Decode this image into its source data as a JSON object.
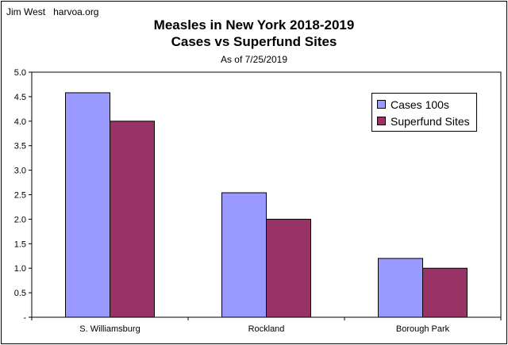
{
  "credit": "Jim West   harvoa.org",
  "chart_data": {
    "type": "bar",
    "title": [
      "Measles in New York 2018-2019",
      "Cases vs Superfund Sites"
    ],
    "subtitle": "As of 7/25/2019",
    "categories": [
      "S. Williamsburg",
      "Rockland",
      "Borough Park"
    ],
    "series": [
      {
        "name": "Cases 100s",
        "values": [
          4.58,
          2.54,
          1.2
        ],
        "color": "#9999ff"
      },
      {
        "name": "Superfund Sites",
        "values": [
          4.0,
          2.0,
          1.0
        ],
        "color": "#993366"
      }
    ],
    "ylim": [
      0,
      5
    ],
    "yticks": [
      "-",
      "0.5",
      "1.0",
      "1.5",
      "2.0",
      "2.5",
      "3.0",
      "3.5",
      "4.0",
      "4.5",
      "5.0"
    ],
    "grid": false,
    "legend": "top-right"
  }
}
